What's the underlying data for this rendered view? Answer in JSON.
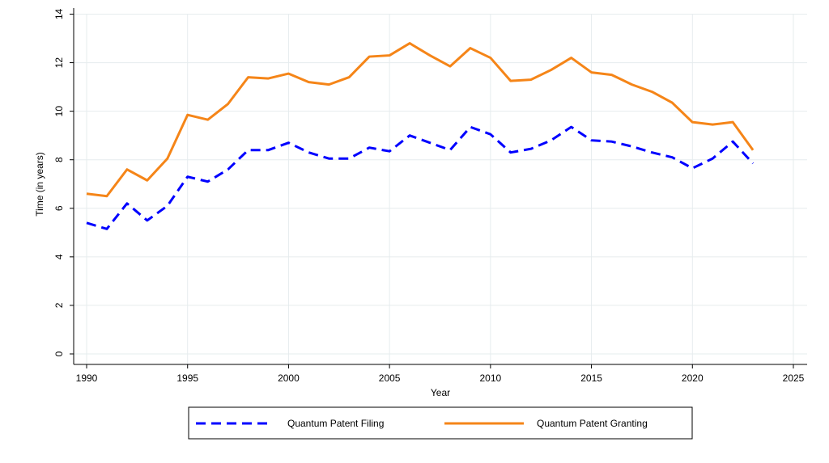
{
  "chart_data": {
    "type": "line",
    "title": "",
    "xlabel": "Year",
    "ylabel": "Time (in years)",
    "xlim": [
      1989,
      2026
    ],
    "ylim": [
      0,
      14
    ],
    "x_ticks": [
      "1990",
      "1995",
      "2000",
      "2005",
      "2010",
      "2015",
      "2020",
      "2025"
    ],
    "y_ticks": [
      "0",
      "2",
      "4",
      "6",
      "8",
      "10",
      "12",
      "14"
    ],
    "grid": true,
    "legend_position": "bottom",
    "x": [
      1990,
      1991,
      1992,
      1993,
      1994,
      1995,
      1996,
      1997,
      1998,
      1999,
      2000,
      2001,
      2002,
      2003,
      2004,
      2005,
      2006,
      2007,
      2008,
      2009,
      2010,
      2011,
      2012,
      2013,
      2014,
      2015,
      2016,
      2017,
      2018,
      2019,
      2020,
      2021,
      2022,
      2023
    ],
    "series": [
      {
        "name": "Quantum Patent Filing",
        "color": "#0000ff",
        "style": "dashed",
        "values": [
          5.4,
          5.15,
          6.2,
          5.5,
          6.1,
          7.3,
          7.1,
          7.6,
          8.4,
          8.4,
          8.7,
          8.3,
          8.05,
          8.05,
          8.5,
          8.35,
          9.0,
          8.7,
          8.4,
          9.35,
          9.05,
          8.3,
          8.45,
          8.8,
          9.35,
          8.8,
          8.75,
          8.55,
          8.3,
          8.1,
          7.65,
          8.05,
          8.75,
          7.85
        ]
      },
      {
        "name": "Quantum Patent Granting",
        "color": "#f58518",
        "style": "solid",
        "values": [
          6.6,
          6.5,
          7.6,
          7.15,
          8.05,
          9.85,
          9.65,
          10.3,
          11.4,
          11.35,
          11.55,
          11.2,
          11.1,
          11.4,
          12.25,
          12.3,
          12.8,
          12.3,
          11.85,
          12.6,
          12.2,
          11.25,
          11.3,
          11.7,
          12.2,
          11.6,
          11.5,
          11.1,
          10.8,
          10.35,
          9.55,
          9.45,
          9.55,
          8.4
        ]
      }
    ]
  }
}
